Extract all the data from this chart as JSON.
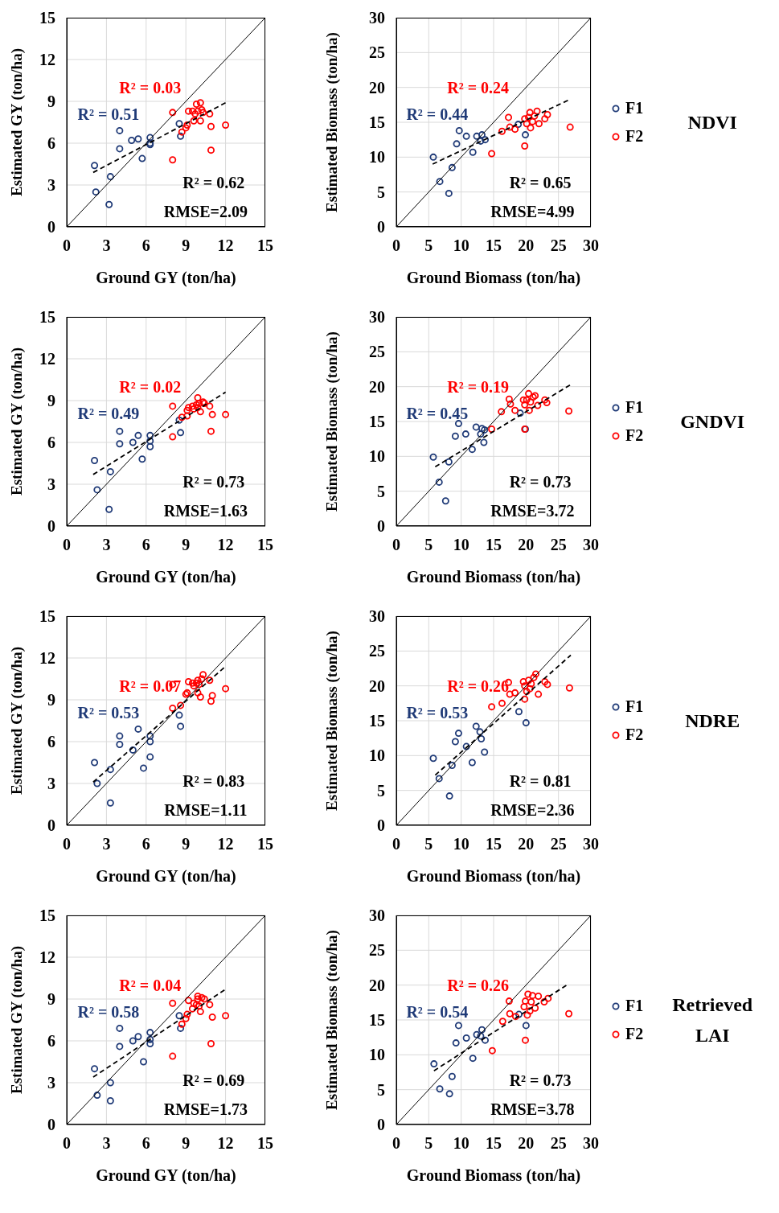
{
  "chart_data": [
    {
      "type": "scatter",
      "xlabel": "Ground GY (ton/ha)",
      "ylabel": "Estimated GY (ton/ha)",
      "xlim": [
        0,
        15
      ],
      "ylim": [
        0,
        15
      ],
      "xticks": [
        0,
        3,
        6,
        9,
        12,
        15
      ],
      "yticks": [
        0,
        3,
        6,
        9,
        12,
        15
      ],
      "grid": true,
      "legend": false,
      "annotations": [
        "R² = 0.03",
        "R² = 0.51",
        "R² = 0.62",
        "RMSE=2.09"
      ],
      "series": [
        {
          "type": "scatter",
          "color": "#1f3a77",
          "marker": "circle",
          "x": [
            2.1,
            2.2,
            3.3,
            3.2,
            4.0,
            4.0,
            4.9,
            5.4,
            5.7,
            6.3,
            6.3,
            6.3,
            8.5,
            8.6
          ],
          "values": [
            4.4,
            2.5,
            3.6,
            1.6,
            6.9,
            5.6,
            6.2,
            6.3,
            4.9,
            6.4,
            6.0,
            5.9,
            7.4,
            6.5
          ]
        },
        {
          "type": "scatter",
          "color": "#ff0000",
          "marker": "circle",
          "x": [
            8.0,
            8.0,
            8.7,
            9.0,
            9.1,
            9.2,
            9.5,
            9.6,
            9.7,
            9.8,
            9.9,
            10.1,
            10.1,
            10.2,
            10.3,
            10.8,
            10.9,
            10.9,
            12.0
          ],
          "values": [
            8.2,
            4.8,
            6.8,
            7.1,
            7.3,
            8.3,
            8.3,
            7.6,
            8.1,
            8.8,
            8.3,
            7.6,
            8.9,
            8.4,
            8.2,
            8.1,
            7.2,
            5.5,
            7.3
          ]
        },
        {
          "type": "line",
          "color": "#000000",
          "line_style": "solid",
          "marker": "none",
          "x": [
            0,
            15
          ],
          "values": [
            0,
            15
          ]
        },
        {
          "type": "line",
          "color": "#000000",
          "line_style": "dashed",
          "marker": "none",
          "x": [
            2.0,
            12.0
          ],
          "values": [
            3.9,
            8.9
          ]
        }
      ]
    },
    {
      "type": "scatter",
      "xlabel": "Ground Biomass (ton/ha)",
      "ylabel": "Estimated Biomass (ton/ha)",
      "xlim": [
        0,
        30
      ],
      "ylim": [
        0,
        30
      ],
      "xticks": [
        0,
        5,
        10,
        15,
        20,
        25,
        30
      ],
      "yticks": [
        0,
        5,
        10,
        15,
        20,
        25,
        30
      ],
      "grid": true,
      "legend": "right",
      "legend_title": "NDVI",
      "annotations": [
        "R² = 0.24",
        "R² = 0.44",
        "R² = 0.65",
        "RMSE=4.99"
      ],
      "series": [
        {
          "type": "scatter",
          "name": "F1",
          "color": "#1f3a77",
          "marker": "circle",
          "x": [
            5.7,
            6.7,
            8.1,
            8.6,
            9.3,
            9.7,
            10.8,
            11.8,
            12.4,
            13.0,
            13.2,
            13.7,
            18.8,
            19.9
          ],
          "values": [
            10.0,
            6.5,
            4.8,
            8.5,
            11.9,
            13.8,
            13.0,
            10.7,
            13.0,
            12.3,
            13.2,
            12.5,
            14.7,
            13.2
          ]
        },
        {
          "type": "scatter",
          "name": "F2",
          "color": "#ff0000",
          "marker": "circle",
          "x": [
            14.7,
            16.3,
            17.3,
            17.5,
            18.3,
            19.8,
            19.8,
            20.1,
            20.4,
            20.6,
            20.7,
            21.0,
            21.3,
            21.7,
            22.0,
            22.9,
            23.3,
            26.8
          ],
          "values": [
            10.5,
            13.7,
            15.7,
            14.3,
            14.0,
            11.6,
            15.5,
            14.8,
            15.7,
            16.4,
            14.2,
            15.1,
            15.9,
            16.6,
            14.8,
            15.5,
            16.1,
            14.3
          ]
        },
        {
          "type": "line",
          "color": "#000000",
          "line_style": "solid",
          "marker": "none",
          "x": [
            0,
            30
          ],
          "values": [
            0,
            30
          ]
        },
        {
          "type": "line",
          "color": "#000000",
          "line_style": "dashed",
          "marker": "none",
          "x": [
            5.6,
            26.6
          ],
          "values": [
            9.0,
            18.2
          ]
        }
      ]
    },
    {
      "type": "scatter",
      "xlabel": "Ground GY (ton/ha)",
      "ylabel": "Estimated GY (ton/ha)",
      "xlim": [
        0,
        15
      ],
      "ylim": [
        0,
        15
      ],
      "xticks": [
        0,
        3,
        6,
        9,
        12,
        15
      ],
      "yticks": [
        0,
        3,
        6,
        9,
        12,
        15
      ],
      "grid": true,
      "legend": false,
      "annotations": [
        "R² = 0.02",
        "R² = 0.49",
        "R² = 0.73",
        "RMSE=1.63"
      ],
      "series": [
        {
          "type": "scatter",
          "color": "#1f3a77",
          "marker": "circle",
          "x": [
            2.1,
            2.3,
            3.3,
            3.2,
            4.0,
            4.0,
            5.0,
            5.4,
            5.7,
            6.3,
            6.3,
            6.3,
            8.5,
            8.6
          ],
          "values": [
            4.7,
            2.6,
            3.9,
            1.2,
            6.8,
            5.9,
            6.0,
            6.5,
            4.8,
            6.5,
            6.1,
            5.7,
            7.6,
            6.7
          ]
        },
        {
          "type": "scatter",
          "color": "#ff0000",
          "marker": "circle",
          "x": [
            8.0,
            8.0,
            8.7,
            9.1,
            9.1,
            9.2,
            9.5,
            9.6,
            9.8,
            9.9,
            9.9,
            10.0,
            10.1,
            10.3,
            10.4,
            10.8,
            11.0,
            10.9,
            12.0
          ],
          "values": [
            8.6,
            6.4,
            7.8,
            7.9,
            8.3,
            8.5,
            8.6,
            8.4,
            8.7,
            8.5,
            9.2,
            8.8,
            8.2,
            8.9,
            8.8,
            8.6,
            8.0,
            6.8,
            8.0
          ]
        },
        {
          "type": "line",
          "color": "#000000",
          "line_style": "solid",
          "marker": "none",
          "x": [
            0,
            15
          ],
          "values": [
            0,
            15
          ]
        },
        {
          "type": "line",
          "color": "#000000",
          "line_style": "dashed",
          "marker": "none",
          "x": [
            2.0,
            12.0
          ],
          "values": [
            3.7,
            9.6
          ]
        }
      ]
    },
    {
      "type": "scatter",
      "xlabel": "Ground Biomass (ton/ha)",
      "ylabel": "Estimated Biomass (ton/ha)",
      "xlim": [
        0,
        30
      ],
      "ylim": [
        0,
        30
      ],
      "xticks": [
        0,
        5,
        10,
        15,
        20,
        25,
        30
      ],
      "yticks": [
        0,
        5,
        10,
        15,
        20,
        25,
        30
      ],
      "grid": true,
      "legend": "right",
      "legend_title": "GNDVI",
      "annotations": [
        "R² = 0.19",
        "R² = 0.45",
        "R² = 0.73",
        "RMSE=3.72"
      ],
      "series": [
        {
          "type": "scatter",
          "name": "F1",
          "color": "#1f3a77",
          "marker": "circle",
          "x": [
            5.7,
            6.6,
            7.6,
            8.1,
            9.1,
            9.6,
            10.7,
            11.7,
            12.3,
            13.0,
            13.2,
            13.5,
            13.6,
            19.1,
            19.9
          ],
          "values": [
            9.9,
            6.3,
            3.6,
            9.2,
            12.9,
            14.7,
            13.2,
            11.0,
            14.2,
            13.2,
            14.0,
            12.0,
            13.8,
            16.2,
            13.9
          ]
        },
        {
          "type": "scatter",
          "name": "F2",
          "color": "#ff0000",
          "marker": "circle",
          "x": [
            14.7,
            16.2,
            17.4,
            17.6,
            18.3,
            19.8,
            19.6,
            19.8,
            20.1,
            20.4,
            20.5,
            20.7,
            21.1,
            21.4,
            21.8,
            22.9,
            23.2,
            26.6
          ],
          "values": [
            13.9,
            16.4,
            18.2,
            17.5,
            16.6,
            13.9,
            18.1,
            17.4,
            18.1,
            19.0,
            16.6,
            17.8,
            18.5,
            18.7,
            17.3,
            18.1,
            17.7,
            16.5
          ]
        },
        {
          "type": "line",
          "color": "#000000",
          "line_style": "solid",
          "marker": "none",
          "x": [
            0,
            30
          ],
          "values": [
            0,
            30
          ]
        },
        {
          "type": "line",
          "color": "#000000",
          "line_style": "dashed",
          "marker": "none",
          "x": [
            6.0,
            26.9
          ],
          "values": [
            8.5,
            20.3
          ]
        }
      ]
    },
    {
      "type": "scatter",
      "xlabel": "Ground GY (ton/ha)",
      "ylabel": "Estimated GY (ton/ha)",
      "xlim": [
        0,
        15
      ],
      "ylim": [
        0,
        15
      ],
      "xticks": [
        0,
        3,
        6,
        9,
        12,
        15
      ],
      "yticks": [
        0,
        3,
        6,
        9,
        12,
        15
      ],
      "grid": true,
      "legend": false,
      "annotations": [
        "R² = 0.07",
        "R² = 0.53",
        "R² = 0.83",
        "RMSE=1.11"
      ],
      "series": [
        {
          "type": "scatter",
          "color": "#1f3a77",
          "marker": "circle",
          "x": [
            2.1,
            2.3,
            3.3,
            3.3,
            4.0,
            4.0,
            5.0,
            5.4,
            5.8,
            6.3,
            6.3,
            6.3,
            8.5,
            8.6
          ],
          "values": [
            4.5,
            3.0,
            4.0,
            1.6,
            6.4,
            5.8,
            5.4,
            6.9,
            4.1,
            6.4,
            6.0,
            4.9,
            7.9,
            7.1
          ]
        },
        {
          "type": "scatter",
          "color": "#ff0000",
          "marker": "circle",
          "x": [
            8.0,
            8.0,
            8.6,
            9.0,
            9.1,
            9.2,
            9.5,
            9.6,
            9.8,
            9.9,
            9.9,
            10.0,
            10.1,
            10.2,
            10.3,
            10.8,
            11.0,
            10.9,
            12.0
          ],
          "values": [
            10.1,
            8.4,
            8.6,
            9.4,
            9.5,
            10.3,
            10.2,
            10.0,
            10.2,
            9.5,
            10.4,
            10.1,
            9.2,
            10.5,
            10.8,
            10.4,
            9.3,
            8.9,
            9.8
          ]
        },
        {
          "type": "line",
          "color": "#000000",
          "line_style": "solid",
          "marker": "none",
          "x": [
            0,
            15
          ],
          "values": [
            0,
            15
          ]
        },
        {
          "type": "line",
          "color": "#000000",
          "line_style": "dashed",
          "marker": "none",
          "x": [
            2.0,
            12.0
          ],
          "values": [
            3.1,
            11.4
          ]
        }
      ]
    },
    {
      "type": "scatter",
      "xlabel": "Ground Biomass (ton/ha)",
      "ylabel": "Estimated Biomass (ton/ha)",
      "xlim": [
        0,
        30
      ],
      "ylim": [
        0,
        30
      ],
      "xticks": [
        0,
        5,
        10,
        15,
        20,
        25,
        30
      ],
      "yticks": [
        0,
        5,
        10,
        15,
        20,
        25,
        30
      ],
      "grid": true,
      "legend": "right",
      "legend_title": "NDRE",
      "annotations": [
        "R² = 0.26",
        "R² = 0.53",
        "R² = 0.81",
        "RMSE=2.36"
      ],
      "series": [
        {
          "type": "scatter",
          "name": "F1",
          "color": "#1f3a77",
          "marker": "circle",
          "x": [
            5.7,
            6.6,
            8.2,
            8.6,
            9.1,
            9.6,
            10.8,
            11.7,
            12.3,
            12.9,
            13.1,
            13.6,
            18.9,
            20.0
          ],
          "values": [
            9.6,
            6.7,
            4.2,
            8.6,
            12.0,
            13.2,
            11.3,
            9.0,
            14.2,
            13.4,
            12.4,
            10.5,
            16.3,
            14.7
          ]
        },
        {
          "type": "scatter",
          "name": "F2",
          "color": "#ff0000",
          "marker": "circle",
          "x": [
            14.7,
            16.3,
            17.3,
            17.5,
            18.3,
            19.8,
            19.6,
            19.8,
            20.1,
            20.4,
            20.6,
            20.8,
            21.2,
            21.5,
            21.9,
            22.9,
            23.3,
            26.7
          ],
          "values": [
            17.0,
            17.5,
            20.5,
            18.8,
            19.0,
            18.1,
            20.6,
            20.0,
            19.2,
            20.8,
            19.6,
            20.3,
            21.2,
            21.7,
            18.8,
            20.6,
            20.2,
            19.7
          ]
        },
        {
          "type": "line",
          "color": "#000000",
          "line_style": "solid",
          "marker": "none",
          "x": [
            0,
            30
          ],
          "values": [
            0,
            30
          ]
        },
        {
          "type": "line",
          "color": "#000000",
          "line_style": "dashed",
          "marker": "none",
          "x": [
            6.0,
            26.9
          ],
          "values": [
            7.2,
            24.4
          ]
        }
      ]
    },
    {
      "type": "scatter",
      "xlabel": "Ground GY (ton/ha)",
      "ylabel": "Estimated GY (ton/ha)",
      "xlim": [
        0,
        15
      ],
      "ylim": [
        0,
        15
      ],
      "xticks": [
        0,
        3,
        6,
        9,
        12,
        15
      ],
      "yticks": [
        0,
        3,
        6,
        9,
        12,
        15
      ],
      "grid": true,
      "legend": false,
      "annotations": [
        "R² = 0.04",
        "R² = 0.58",
        "R² = 0.69",
        "RMSE=1.73"
      ],
      "series": [
        {
          "type": "scatter",
          "color": "#1f3a77",
          "marker": "circle",
          "x": [
            2.1,
            2.3,
            3.3,
            3.3,
            4.0,
            4.0,
            5.0,
            5.4,
            5.8,
            6.3,
            6.3,
            6.3,
            8.5,
            8.6
          ],
          "values": [
            4.0,
            2.1,
            3.0,
            1.7,
            6.9,
            5.6,
            6.0,
            6.3,
            4.5,
            6.6,
            6.1,
            5.8,
            7.8,
            6.9
          ]
        },
        {
          "type": "scatter",
          "color": "#ff0000",
          "marker": "circle",
          "x": [
            8.0,
            8.0,
            8.7,
            9.0,
            9.1,
            9.2,
            9.5,
            9.6,
            9.8,
            9.9,
            9.9,
            10.0,
            10.1,
            10.2,
            10.4,
            10.8,
            11.0,
            10.9,
            12.0
          ],
          "values": [
            8.7,
            4.9,
            7.2,
            7.6,
            7.9,
            8.9,
            8.3,
            8.7,
            8.6,
            9.0,
            9.2,
            8.5,
            8.1,
            9.1,
            9.0,
            8.6,
            7.7,
            5.8,
            7.8
          ]
        },
        {
          "type": "line",
          "color": "#000000",
          "line_style": "solid",
          "marker": "none",
          "x": [
            0,
            15
          ],
          "values": [
            0,
            15
          ]
        },
        {
          "type": "line",
          "color": "#000000",
          "line_style": "dashed",
          "marker": "none",
          "x": [
            2.0,
            12.0
          ],
          "values": [
            3.4,
            9.7
          ]
        }
      ]
    },
    {
      "type": "scatter",
      "xlabel": "Ground Biomass (ton/ha)",
      "ylabel": "Estimated Biomass (ton/ha)",
      "xlim": [
        0,
        30
      ],
      "ylim": [
        0,
        30
      ],
      "xticks": [
        0,
        5,
        10,
        15,
        20,
        25,
        30
      ],
      "yticks": [
        0,
        5,
        10,
        15,
        20,
        25,
        30
      ],
      "grid": true,
      "legend": "right",
      "legend_title": "Retrieved LAI",
      "annotations": [
        "R² = 0.26",
        "R² = 0.54",
        "R² = 0.73",
        "RMSE=3.78"
      ],
      "series": [
        {
          "type": "scatter",
          "name": "F1",
          "color": "#1f3a77",
          "marker": "circle",
          "x": [
            5.8,
            6.7,
            8.2,
            8.6,
            9.2,
            9.6,
            10.8,
            11.8,
            12.4,
            13.0,
            13.2,
            13.7,
            18.9,
            20.0
          ],
          "values": [
            8.7,
            5.1,
            4.4,
            6.9,
            11.7,
            14.2,
            12.4,
            9.5,
            12.9,
            12.7,
            13.6,
            12.1,
            15.8,
            14.2
          ]
        },
        {
          "type": "scatter",
          "name": "F2",
          "color": "#ff0000",
          "marker": "circle",
          "x": [
            14.8,
            16.4,
            17.4,
            17.5,
            18.4,
            19.9,
            19.7,
            19.9,
            20.2,
            20.3,
            20.6,
            20.8,
            21.0,
            21.4,
            21.9,
            22.8,
            23.4,
            26.6
          ],
          "values": [
            10.6,
            14.8,
            17.7,
            15.9,
            15.5,
            12.1,
            16.9,
            17.7,
            15.7,
            18.7,
            16.3,
            17.6,
            18.5,
            16.7,
            18.4,
            17.6,
            18.1,
            15.9
          ]
        },
        {
          "type": "line",
          "color": "#000000",
          "line_style": "solid",
          "marker": "none",
          "x": [
            0,
            30
          ],
          "values": [
            0,
            30
          ]
        },
        {
          "type": "line",
          "color": "#000000",
          "line_style": "dashed",
          "marker": "none",
          "x": [
            5.8,
            26.6
          ],
          "values": [
            7.7,
            20.2
          ]
        }
      ]
    }
  ]
}
